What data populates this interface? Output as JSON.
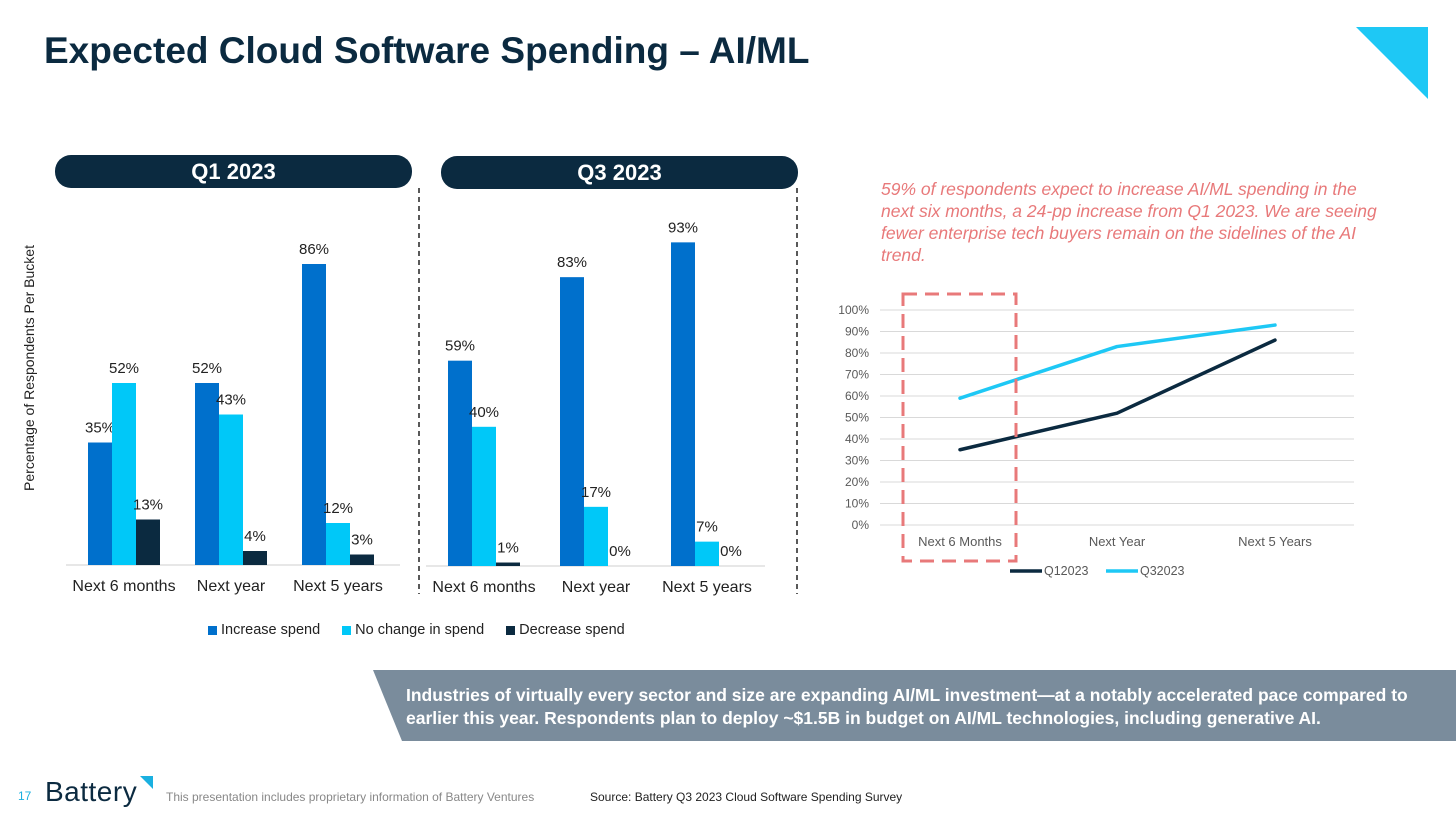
{
  "title": "Expected Cloud Software Spending – AI/ML",
  "panels": {
    "q1_label": "Q1 2023",
    "q3_label": "Q3 2023"
  },
  "y_axis_label": "Percentage of Respondents Per Bucket",
  "callout": "59% of respondents expect to increase AI/ML spending in the next six months, a 24-pp increase from Q1 2023. We are seeing fewer enterprise tech buyers remain on the sidelines of the AI trend.",
  "banner": "Industries of virtually every sector and size are expanding AI/ML investment—at a notably accelerated pace compared to earlier this year. Respondents plan to deploy ~$1.5B in budget on AI/ML technologies, including generative AI.",
  "footer": {
    "page_number": "17",
    "logo": "Battery",
    "note": "This presentation includes proprietary information of Battery Ventures",
    "source": "Source: Battery Q3 2023 Cloud Software Spending Survey"
  },
  "colors": {
    "increase": "#0070cc",
    "no_change": "#00c8f8",
    "decrease": "#0b2a40",
    "accent": "#1ec8f5",
    "callout": "#e8797a",
    "banner": "#7a8c9c"
  },
  "chart_data": [
    {
      "type": "bar",
      "title": "Q1 2023",
      "categories": [
        "Next 6 months",
        "Next year",
        "Next 5 years"
      ],
      "series": [
        {
          "name": "Increase spend",
          "values": [
            35,
            52,
            86
          ]
        },
        {
          "name": "No change in spend",
          "values": [
            52,
            43,
            12
          ]
        },
        {
          "name": "Decrease spend",
          "values": [
            13,
            4,
            3
          ]
        }
      ],
      "ylabel": "Percentage of Respondents Per Bucket",
      "ylim": [
        0,
        100
      ]
    },
    {
      "type": "bar",
      "title": "Q3 2023",
      "categories": [
        "Next 6 months",
        "Next year",
        "Next 5 years"
      ],
      "series": [
        {
          "name": "Increase spend",
          "values": [
            59,
            83,
            93
          ]
        },
        {
          "name": "No change in spend",
          "values": [
            40,
            17,
            7
          ]
        },
        {
          "name": "Decrease spend",
          "values": [
            1,
            0,
            0
          ]
        }
      ],
      "ylim": [
        0,
        100
      ]
    },
    {
      "type": "line",
      "categories": [
        "Next 6 Months",
        "Next Year",
        "Next 5 Years"
      ],
      "series": [
        {
          "name": "Q12023",
          "values": [
            35,
            52,
            86
          ]
        },
        {
          "name": "Q32023",
          "values": [
            59,
            83,
            93
          ]
        }
      ],
      "yticks": [
        "0%",
        "10%",
        "20%",
        "30%",
        "40%",
        "50%",
        "60%",
        "70%",
        "80%",
        "90%",
        "100%"
      ],
      "ylim": [
        0,
        100
      ],
      "grid": true,
      "legend": "bottom"
    }
  ]
}
